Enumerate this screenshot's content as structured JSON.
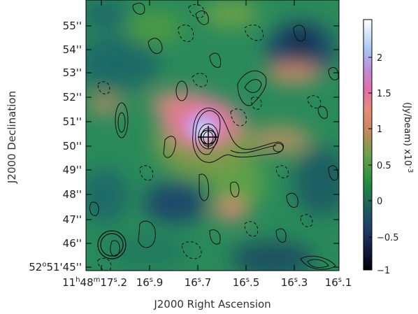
{
  "x_axis": {
    "title": "J2000 Right Ascension",
    "ticks": [
      {
        "h": "11",
        "m": "48",
        "s": "17",
        "frac": ".2"
      },
      {
        "s": "16",
        "frac": ".9"
      },
      {
        "s": "16",
        "frac": ".7"
      },
      {
        "s": "16",
        "frac": ".5"
      },
      {
        "s": "16",
        "frac": ".3"
      },
      {
        "s": "16",
        "frac": ".1"
      }
    ]
  },
  "y_axis": {
    "title": "J2000 Declination",
    "ticks": [
      "55''",
      "54''",
      "53''",
      "52''",
      "51''",
      "50''",
      "49''",
      "48''",
      "47''",
      "46''"
    ],
    "origin": {
      "deg": "52",
      "amin": "51",
      "asec": "45''"
    }
  },
  "colorbar": {
    "label": "(Jy/beam)  x10",
    "exponent": "-3",
    "ticks": [
      "2",
      "1.5",
      "1",
      "0.5",
      "0",
      "−0.5",
      "−1"
    ],
    "colormap": [
      "#000000",
      "#1f2a55",
      "#1e5a5e",
      "#1e8a3d",
      "#5aa34a",
      "#b28a5a",
      "#e89078",
      "#e070a8",
      "#b090e0",
      "#a0d8ff",
      "#ffffff"
    ]
  },
  "sup": {
    "h": "h",
    "m": "m",
    "s": "s",
    "deg": "o"
  }
}
